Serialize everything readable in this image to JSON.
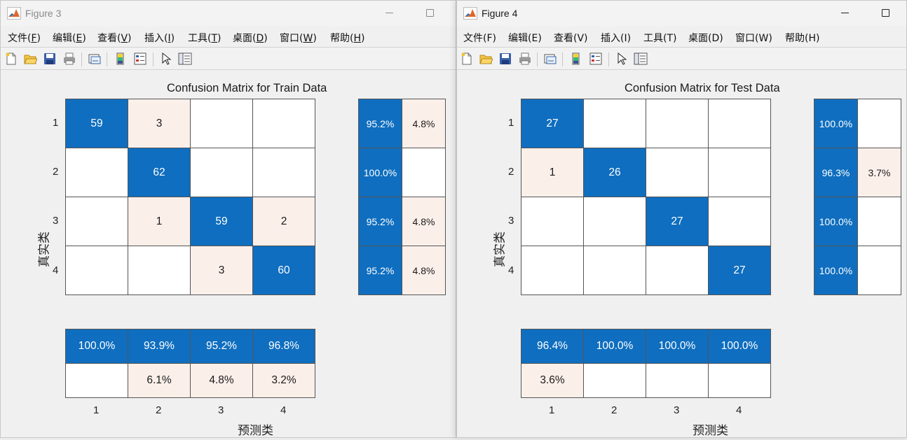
{
  "colors": {
    "dark": "#0f6ebf",
    "light": "#fbefea",
    "white": "#ffffff"
  },
  "menu": [
    {
      "text": "文件(",
      "key": "F"
    },
    {
      "text": "编辑(",
      "key": "E"
    },
    {
      "text": "查看(",
      "key": "V"
    },
    {
      "text": "插入(",
      "key": "I"
    },
    {
      "text": "工具(",
      "key": "T"
    },
    {
      "text": "桌面(",
      "key": "D"
    },
    {
      "text": "窗口(",
      "key": "W"
    },
    {
      "text": "帮助(",
      "key": "H"
    }
  ],
  "toolbar_icons": [
    "new-figure-icon",
    "open-file-icon",
    "save-icon",
    "print-icon",
    "link-plot-icon",
    "colorbar-icon",
    "legend-icon",
    "pointer-icon",
    "property-inspector-icon"
  ],
  "fig3": {
    "window_title": "Figure 3",
    "plot_title": "Confusion Matrix for Train Data",
    "ylabel": "真实类",
    "xlabel": "预测类",
    "row_ticks": [
      "1",
      "2",
      "3",
      "4"
    ],
    "col_ticks": [
      "1",
      "2",
      "3",
      "4"
    ],
    "matrix": [
      [
        "59",
        "3",
        "",
        ""
      ],
      [
        "",
        "62",
        "",
        ""
      ],
      [
        "",
        "1",
        "59",
        "2"
      ],
      [
        "",
        "",
        "3",
        "60"
      ]
    ],
    "matrix_shade": [
      [
        "dark",
        "light",
        "white",
        "white"
      ],
      [
        "white",
        "dark",
        "white",
        "white"
      ],
      [
        "white",
        "light",
        "dark",
        "light"
      ],
      [
        "white",
        "white",
        "light",
        "dark"
      ]
    ],
    "row_summary": [
      [
        "95.2%",
        "4.8%"
      ],
      [
        "100.0%",
        ""
      ],
      [
        "95.2%",
        "4.8%"
      ],
      [
        "95.2%",
        "4.8%"
      ]
    ],
    "row_summary_shade": [
      [
        "dark",
        "light"
      ],
      [
        "dark",
        "white"
      ],
      [
        "dark",
        "light"
      ],
      [
        "dark",
        "light"
      ]
    ],
    "col_summary": [
      [
        "100.0%",
        "93.9%",
        "95.2%",
        "96.8%"
      ],
      [
        "",
        "6.1%",
        "4.8%",
        "3.2%"
      ]
    ],
    "col_summary_shade": [
      [
        "dark",
        "dark",
        "dark",
        "dark"
      ],
      [
        "white",
        "light",
        "light",
        "light"
      ]
    ]
  },
  "fig4": {
    "window_title": "Figure 4",
    "plot_title": "Confusion Matrix for Test Data",
    "ylabel": "真实类",
    "xlabel": "预测类",
    "row_ticks": [
      "1",
      "2",
      "3",
      "4"
    ],
    "col_ticks": [
      "1",
      "2",
      "3",
      "4"
    ],
    "matrix": [
      [
        "27",
        "",
        "",
        ""
      ],
      [
        "1",
        "26",
        "",
        ""
      ],
      [
        "",
        "",
        "27",
        ""
      ],
      [
        "",
        "",
        "",
        "27"
      ]
    ],
    "matrix_shade": [
      [
        "dark",
        "white",
        "white",
        "white"
      ],
      [
        "light",
        "dark",
        "white",
        "white"
      ],
      [
        "white",
        "white",
        "dark",
        "white"
      ],
      [
        "white",
        "white",
        "white",
        "dark"
      ]
    ],
    "row_summary": [
      [
        "100.0%",
        ""
      ],
      [
        "96.3%",
        "3.7%"
      ],
      [
        "100.0%",
        ""
      ],
      [
        "100.0%",
        ""
      ]
    ],
    "row_summary_shade": [
      [
        "dark",
        "white"
      ],
      [
        "dark",
        "light"
      ],
      [
        "dark",
        "white"
      ],
      [
        "dark",
        "white"
      ]
    ],
    "col_summary": [
      [
        "96.4%",
        "100.0%",
        "100.0%",
        "100.0%"
      ],
      [
        "3.6%",
        "",
        "",
        ""
      ]
    ],
    "col_summary_shade": [
      [
        "dark",
        "dark",
        "dark",
        "dark"
      ],
      [
        "light",
        "white",
        "white",
        "white"
      ]
    ]
  }
}
